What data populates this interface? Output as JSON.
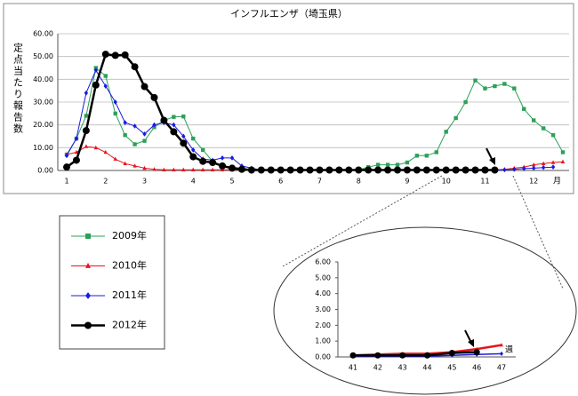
{
  "chart_data": [
    {
      "type": "line",
      "title": "インフルエンザ（埼玉県）",
      "ylabel": "定点当たり報告数",
      "xlabel": "月",
      "categories": [
        "1",
        null,
        null,
        null,
        "2",
        null,
        null,
        null,
        "3",
        null,
        null,
        null,
        null,
        "4",
        null,
        null,
        null,
        "5",
        null,
        null,
        null,
        null,
        "6",
        null,
        null,
        null,
        "7",
        null,
        null,
        null,
        "8",
        null,
        null,
        null,
        null,
        "9",
        null,
        null,
        null,
        "10",
        null,
        null,
        null,
        "11",
        null,
        null,
        null,
        null,
        "12",
        null,
        null,
        null
      ],
      "ylim": [
        0,
        60
      ],
      "yticks": [
        {
          "value": 0,
          "label": "0.00"
        },
        {
          "value": 10,
          "label": "10.00"
        },
        {
          "value": 20,
          "label": "20.00"
        },
        {
          "value": 30,
          "label": "30.00"
        },
        {
          "value": 40,
          "label": "40.00"
        },
        {
          "value": 50,
          "label": "50.00"
        },
        {
          "value": 60,
          "label": "60.00"
        }
      ],
      "grid": true,
      "series": [
        {
          "name": "2009年",
          "color": "#2ca05a",
          "marker": "square",
          "values": [
            7,
            14,
            24,
            45,
            41.5,
            25,
            15.5,
            11.5,
            13,
            19,
            22,
            23.5,
            23.7,
            14,
            9,
            4,
            2,
            1.5,
            1,
            0.5,
            0.3,
            0.3,
            0.3,
            0.3,
            0.3,
            0.3,
            0.3,
            0.3,
            0.3,
            0.3,
            0.3,
            1.5,
            2.5,
            2.5,
            2.5,
            3.5,
            6.5,
            6.5,
            8,
            17,
            23,
            30,
            39.5,
            36,
            37,
            38,
            36,
            27,
            22,
            18.5,
            15.5,
            8
          ]
        },
        {
          "name": "2010年",
          "color": "#e8141c",
          "marker": "triangle",
          "values": [
            7,
            8,
            10.5,
            10,
            8,
            5,
            3,
            2,
            1,
            0.5,
            0.3,
            0.3,
            0.3,
            0.3,
            0.3,
            0.3,
            0.3,
            0.3,
            0.3,
            0.3,
            0.3,
            0.3,
            0.3,
            0.3,
            0.3,
            0.3,
            0.3,
            0.3,
            0.3,
            0.3,
            0.3,
            0.3,
            0.3,
            0.3,
            0.3,
            0.3,
            0.3,
            0.3,
            0.3,
            0.3,
            0.3,
            0.3,
            0.3,
            0.3,
            0.3,
            0.5,
            1,
            1.5,
            2.5,
            3,
            3.5,
            3.8
          ]
        },
        {
          "name": "2011年",
          "color": "#1a1ae0",
          "marker": "diamond",
          "values": [
            6.5,
            14,
            34,
            44,
            37,
            30,
            21,
            19.5,
            16,
            20,
            21,
            20,
            15,
            9,
            5,
            4.5,
            5.5,
            5.5,
            2,
            1,
            0.2,
            0.2,
            0.2,
            0.2,
            0.2,
            0.2,
            0.2,
            0.2,
            0.2,
            0.2,
            0.2,
            0.2,
            0.2,
            0.2,
            0.2,
            0.2,
            0.2,
            0.2,
            0.2,
            0.2,
            0.2,
            0.2,
            0.2,
            0.2,
            0.2,
            0.3,
            0.5,
            0.8,
            1,
            1.3,
            1.5,
            null
          ]
        },
        {
          "name": "2012年",
          "color": "#000000",
          "marker": "circle",
          "values": [
            1.5,
            4.5,
            17.5,
            37.5,
            51,
            50.5,
            50.7,
            45.5,
            36.8,
            32,
            22,
            17,
            12,
            6,
            4,
            3.5,
            2,
            1,
            0.5,
            0.2,
            0.2,
            0.2,
            0.2,
            0.2,
            0.2,
            0.2,
            0.2,
            0.2,
            0.2,
            0.2,
            0.2,
            0.2,
            0.2,
            0.2,
            0.2,
            0.2,
            0.2,
            0.2,
            0.2,
            0.2,
            0.2,
            0.2,
            0.2,
            0.2,
            0.2,
            null,
            null,
            null,
            null,
            null,
            null,
            null
          ]
        }
      ]
    },
    {
      "type": "line",
      "xlabel": "週",
      "categories": [
        "41",
        "42",
        "43",
        "44",
        "45",
        "46",
        "47"
      ],
      "ylim": [
        0,
        6
      ],
      "yticks": [
        {
          "value": 0,
          "label": "0.00"
        },
        {
          "value": 1,
          "label": "1.00"
        },
        {
          "value": 2,
          "label": "2.00"
        },
        {
          "value": 3,
          "label": "3.00"
        },
        {
          "value": 4,
          "label": "4.00"
        },
        {
          "value": 5,
          "label": "5.00"
        },
        {
          "value": 6,
          "label": "6.00"
        }
      ],
      "grid": false,
      "series": [
        {
          "color": "#e8141c",
          "marker": "triangle",
          "values": [
            0.1,
            0.15,
            0.2,
            0.2,
            0.3,
            0.5,
            0.75
          ]
        },
        {
          "color": "#1a1ae0",
          "marker": "diamond",
          "values": [
            0.05,
            0.05,
            0.05,
            0.05,
            0.1,
            0.15,
            0.2
          ]
        },
        {
          "color": "#000000",
          "marker": "circle",
          "values": [
            0.1,
            0.1,
            0.1,
            0.1,
            0.25,
            0.3,
            null
          ]
        }
      ]
    }
  ]
}
